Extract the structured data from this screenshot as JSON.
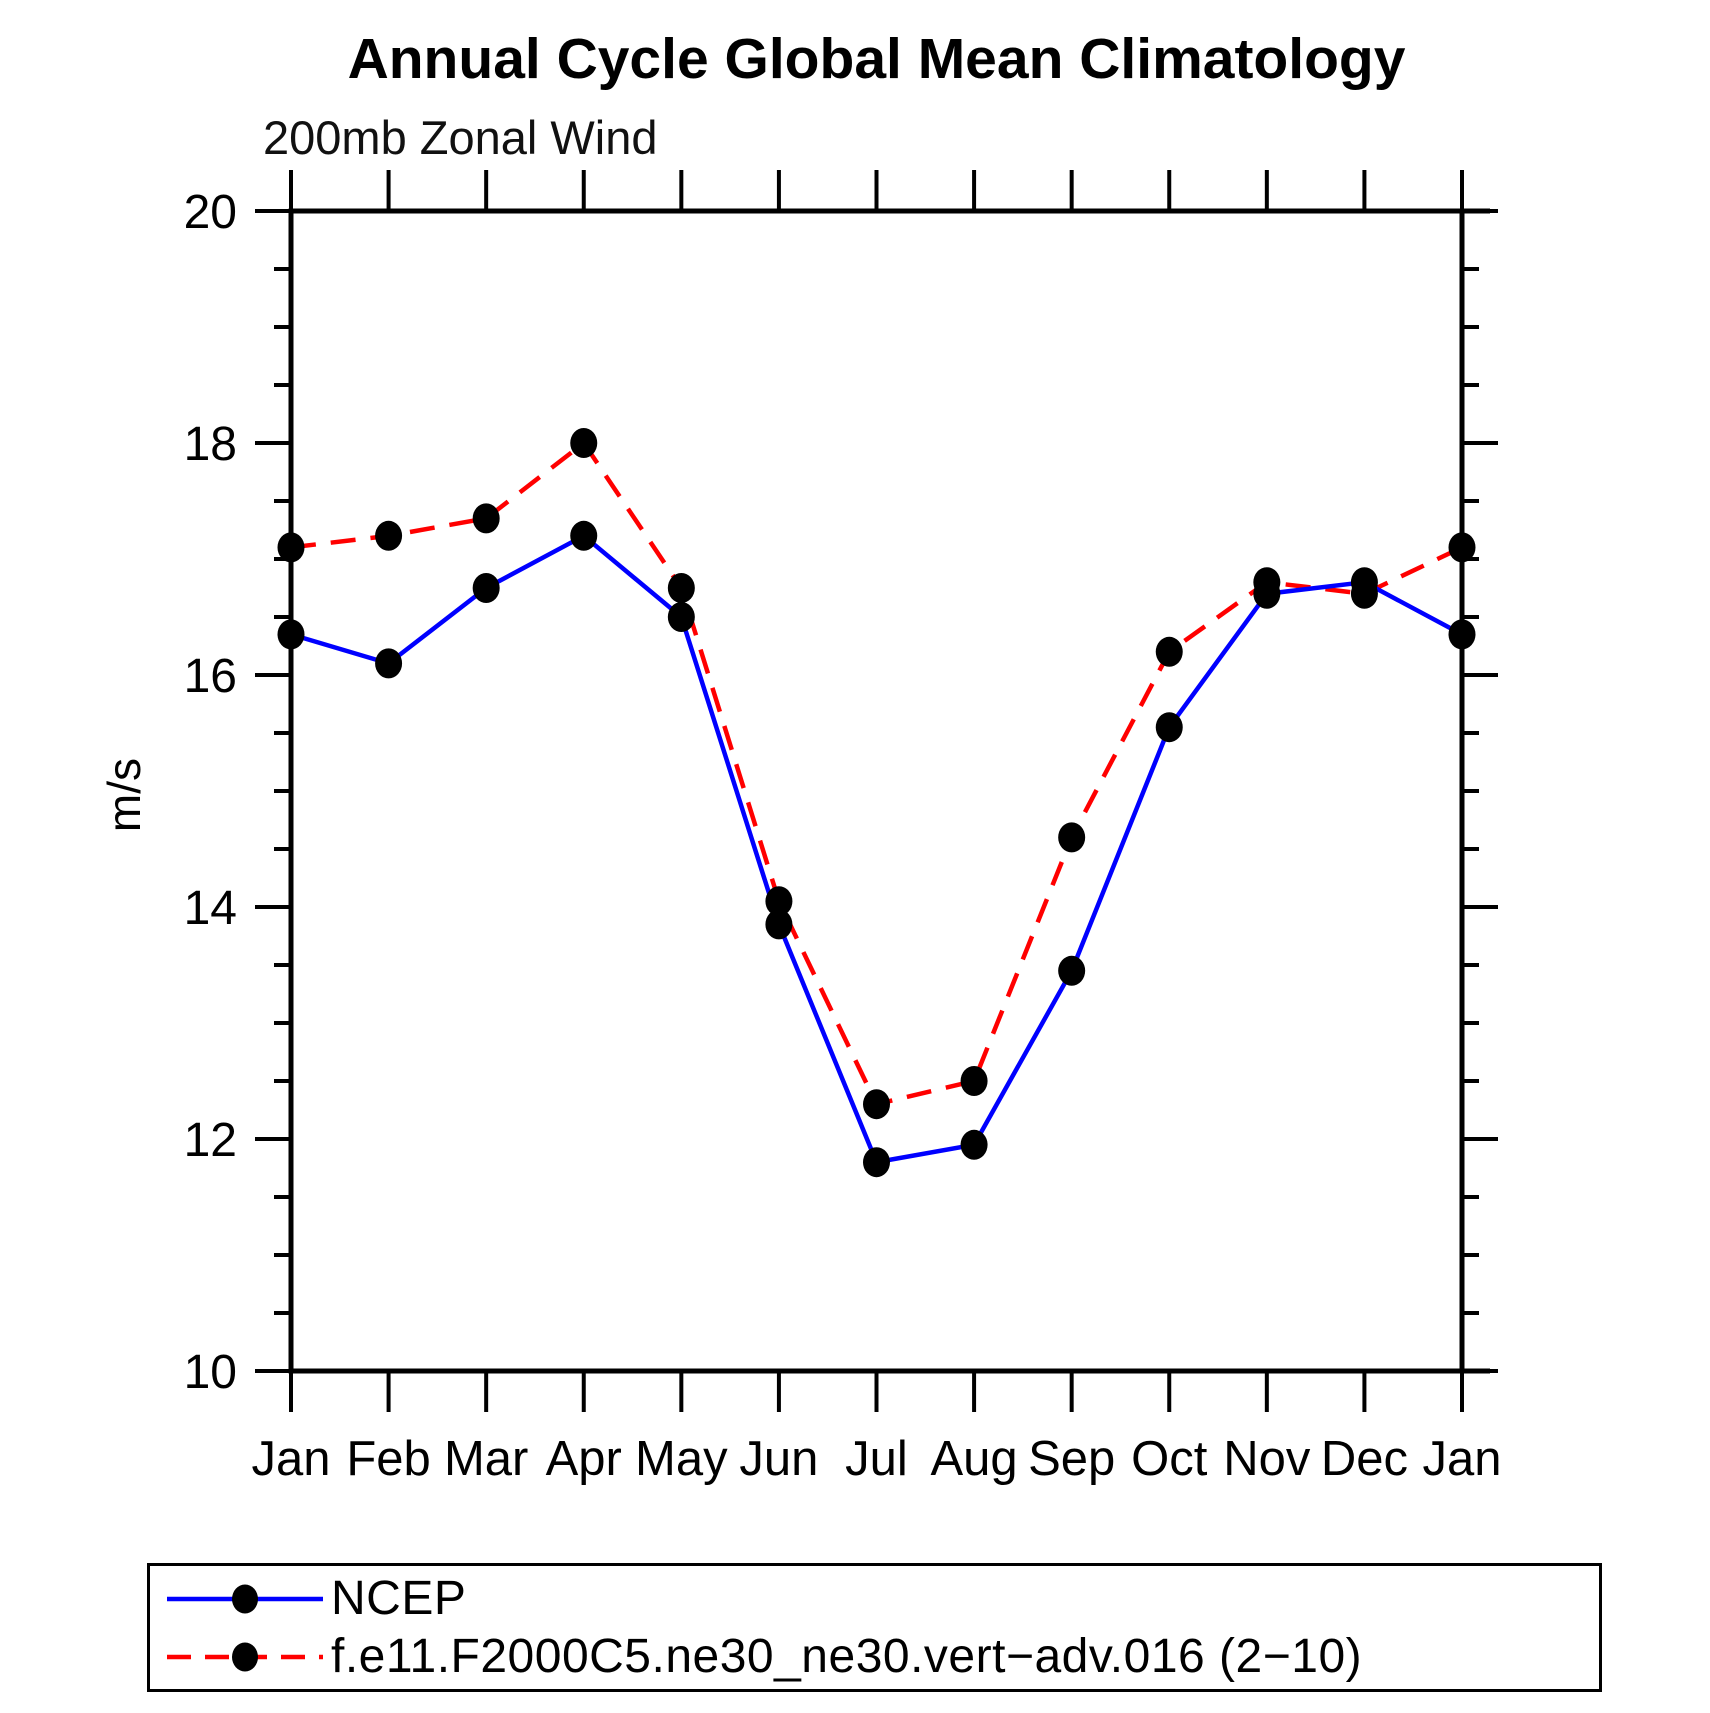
{
  "title": "Annual Cycle Global Mean Climatology",
  "subtitle": "200mb Zonal Wind",
  "chart_data": {
    "type": "line",
    "title": "Annual Cycle Global Mean Climatology",
    "subtitle": "200mb Zonal Wind",
    "xlabel": "",
    "ylabel": "m/s",
    "categories": [
      "Jan",
      "Feb",
      "Mar",
      "Apr",
      "May",
      "Jun",
      "Jul",
      "Aug",
      "Sep",
      "Oct",
      "Nov",
      "Dec",
      "Jan"
    ],
    "ylim": [
      10,
      20
    ],
    "ytick_major": [
      10,
      12,
      14,
      16,
      18,
      20
    ],
    "ytick_minor_step": 0.5,
    "grid": false,
    "legend_position": "bottom-left-box",
    "marker": "filled-black-circle",
    "series": [
      {
        "name": "NCEP",
        "color": "#0000ff",
        "style": "solid",
        "values": [
          16.35,
          16.1,
          16.75,
          17.2,
          16.5,
          13.85,
          11.8,
          11.95,
          13.45,
          15.55,
          16.7,
          16.8,
          16.35
        ]
      },
      {
        "name": "f.e11.F2000C5.ne30_ne30.vert−adv.016 (2−10)",
        "color": "#ff0000",
        "style": "dashed",
        "values": [
          17.1,
          17.2,
          17.35,
          18.0,
          16.75,
          14.05,
          12.3,
          12.5,
          14.6,
          16.2,
          16.8,
          16.7,
          17.1
        ]
      }
    ]
  }
}
